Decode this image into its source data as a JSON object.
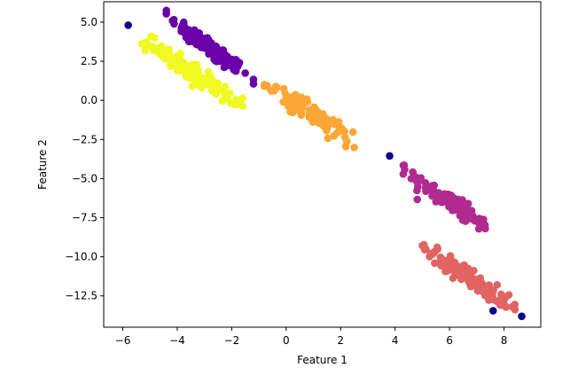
{
  "chart_data": {
    "type": "scatter",
    "title": "",
    "xlabel": "Feature 1",
    "ylabel": "Feature 2",
    "xlim": [
      -6.7,
      9.35
    ],
    "ylim": [
      -14.5,
      6.3
    ],
    "xticks": [
      -6,
      -4,
      -2,
      0,
      2,
      4,
      6,
      8
    ],
    "xtick_labels": [
      "−6",
      "−4",
      "−2",
      "0",
      "2",
      "4",
      "6",
      "8"
    ],
    "yticks": [
      5.0,
      2.5,
      0.0,
      -2.5,
      -5.0,
      -7.5,
      -10.0,
      -12.5
    ],
    "ytick_labels": [
      "5.0",
      "2.5",
      "0.0",
      "−2.5",
      "−5.0",
      "−7.5",
      "−10.0",
      "−12.5"
    ],
    "grid": false,
    "legend": "none",
    "series": [
      {
        "color": "#0d0887",
        "points": [
          [
            -5.8,
            4.8
          ],
          [
            3.8,
            -3.55
          ],
          [
            7.6,
            -13.45
          ],
          [
            8.65,
            -13.8
          ]
        ]
      },
      {
        "color": "#6a00a8",
        "cluster": {
          "x0": -4.4,
          "x1": -1.2,
          "slope": -1.28,
          "intercept": -0.25,
          "spread": 0.32,
          "n": 130
        }
      },
      {
        "color": "#b12a90",
        "cluster": {
          "x0": 4.3,
          "x1": 7.7,
          "slope": -1.2,
          "intercept": 0.7,
          "spread": 0.3,
          "n": 120
        }
      },
      {
        "color": "#e16462",
        "cluster": {
          "x0": 5.0,
          "x1": 8.4,
          "slope": -1.18,
          "intercept": -3.4,
          "spread": 0.32,
          "n": 120
        }
      },
      {
        "color": "#fca636",
        "cluster": {
          "x0": -0.8,
          "x1": 2.5,
          "slope": -1.15,
          "intercept": 0.2,
          "spread": 0.3,
          "n": 120
        }
      },
      {
        "color": "#f0f921",
        "cluster": {
          "x0": -5.3,
          "x1": -1.6,
          "slope": -1.15,
          "intercept": -2.15,
          "spread": 0.33,
          "n": 130
        }
      }
    ]
  }
}
